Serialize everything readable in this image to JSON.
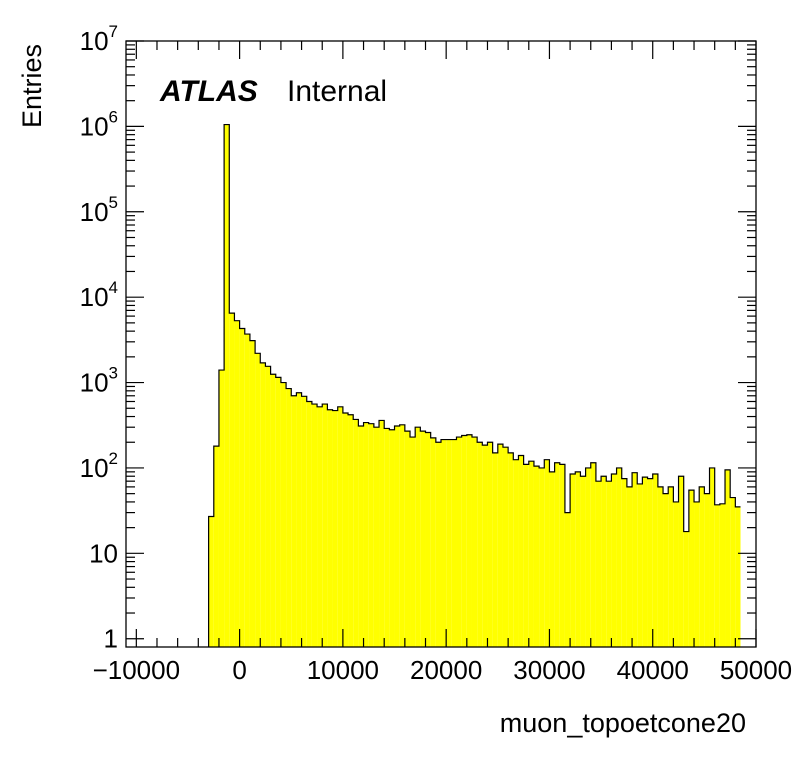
{
  "chart_data": {
    "type": "histogram",
    "label": {
      "experiment": "ATLAS",
      "status": "Internal"
    },
    "xlabel": "muon_topoetcone20",
    "ylabel": "Entries",
    "xlim": [
      -11000,
      50000
    ],
    "ylim": [
      0.8,
      10000000
    ],
    "log_y": true,
    "x_ticks": [
      -10000,
      0,
      10000,
      20000,
      30000,
      40000,
      50000
    ],
    "x_tick_labels": [
      "−10000",
      "0",
      "10000",
      "20000",
      "30000",
      "40000",
      "50000"
    ],
    "y_ticks": [
      {
        "value": 1,
        "base": "1",
        "exp": ""
      },
      {
        "value": 10,
        "base": "10",
        "exp": ""
      },
      {
        "value": 100,
        "base": "10",
        "exp": "2"
      },
      {
        "value": 1000,
        "base": "10",
        "exp": "3"
      },
      {
        "value": 10000,
        "base": "10",
        "exp": "4"
      },
      {
        "value": 100000,
        "base": "10",
        "exp": "5"
      },
      {
        "value": 1000000,
        "base": "10",
        "exp": "6"
      },
      {
        "value": 10000000,
        "base": "10",
        "exp": "7"
      }
    ],
    "fill_color": "#ffff00",
    "line_color": "#000000",
    "bins": {
      "first_edge": -3000,
      "width": 500,
      "counts": [
        27,
        180,
        1400,
        1050000,
        6500,
        5300,
        4300,
        3700,
        3100,
        2200,
        1700,
        1550,
        1250,
        1150,
        1000,
        850,
        700,
        760,
        690,
        600,
        560,
        520,
        560,
        480,
        470,
        520,
        440,
        420,
        370,
        310,
        340,
        330,
        300,
        360,
        290,
        280,
        310,
        320,
        270,
        230,
        300,
        270,
        260,
        225,
        200,
        215,
        215,
        215,
        230,
        240,
        245,
        230,
        200,
        185,
        200,
        150,
        190,
        175,
        150,
        125,
        140,
        110,
        120,
        105,
        100,
        125,
        90,
        115,
        110,
        30,
        85,
        90,
        80,
        100,
        115,
        70,
        80,
        70,
        85,
        100,
        75,
        60,
        88,
        65,
        78,
        75,
        85,
        60,
        50,
        60,
        40,
        80,
        18,
        55,
        40,
        60,
        50,
        100,
        37,
        38,
        95,
        45,
        35
      ]
    }
  }
}
